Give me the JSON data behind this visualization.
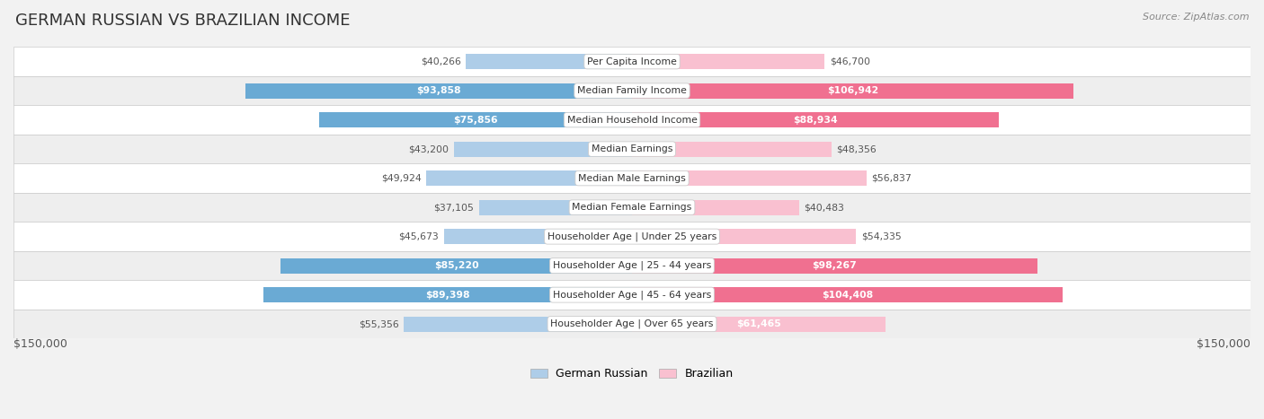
{
  "title": "GERMAN RUSSIAN VS BRAZILIAN INCOME",
  "source": "Source: ZipAtlas.com",
  "categories": [
    "Per Capita Income",
    "Median Family Income",
    "Median Household Income",
    "Median Earnings",
    "Median Male Earnings",
    "Median Female Earnings",
    "Householder Age | Under 25 years",
    "Householder Age | 25 - 44 years",
    "Householder Age | 45 - 64 years",
    "Householder Age | Over 65 years"
  ],
  "german_russian": [
    40266,
    93858,
    75856,
    43200,
    49924,
    37105,
    45673,
    85220,
    89398,
    55356
  ],
  "brazilian": [
    46700,
    106942,
    88934,
    48356,
    56837,
    40483,
    54335,
    98267,
    104408,
    61465
  ],
  "max_val": 150000,
  "color_german_light": "#aecde8",
  "color_german_dark": "#6aaad4",
  "color_brazilian_light": "#f9c0d0",
  "color_brazilian_dark": "#f07090",
  "german_dark_threshold": 70000,
  "brazilian_dark_threshold": 80000,
  "background_outer": "#f2f2f2",
  "background_row_white": "#ffffff",
  "background_row_gray": "#eeeeee",
  "label_color_dark": "#555555",
  "label_color_white": "#ffffff",
  "bar_height": 0.52,
  "legend_label_german": "German Russian",
  "legend_label_brazilian": "Brazilian",
  "x_label_left": "$150,000",
  "x_label_right": "$150,000",
  "label_inside_threshold": 60000
}
